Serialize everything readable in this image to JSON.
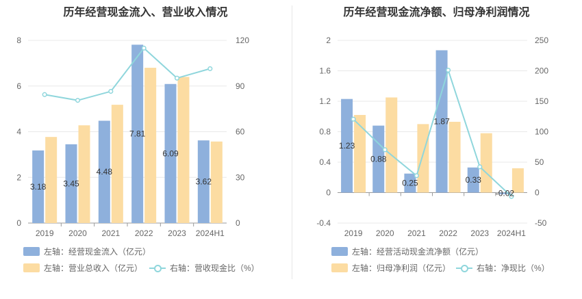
{
  "chart_data": [
    {
      "type": "bar",
      "title": "历年经营现金流入、营业收入情况",
      "categories": [
        "2019",
        "2020",
        "2021",
        "2022",
        "2023",
        "2024H1"
      ],
      "ylim_left": [
        0,
        8
      ],
      "yticks_left": [
        "0",
        "2",
        "4",
        "6",
        "8"
      ],
      "ylim_right": [
        0,
        120
      ],
      "yticks_right": [
        "0",
        "30",
        "60",
        "90",
        "120"
      ],
      "grid": true,
      "legend_position": "bottom-left",
      "series": [
        {
          "name": "左轴：经营现金流入（亿元）",
          "kind": "bar",
          "axis": "left",
          "color": "#8eb0dc",
          "values": [
            3.18,
            3.45,
            4.48,
            7.81,
            6.09,
            3.62
          ],
          "labels": [
            "3.18",
            "3.45",
            "4.48",
            "7.81",
            "6.09",
            "3.62"
          ]
        },
        {
          "name": "左轴：营业总收入（亿元）",
          "kind": "bar",
          "axis": "left",
          "color": "#fcdca2",
          "values": [
            3.77,
            4.28,
            5.18,
            6.8,
            6.4,
            3.57
          ]
        },
        {
          "name": "右轴：营收现金比（%）",
          "kind": "line",
          "axis": "right",
          "color": "#8fd6dc",
          "values": [
            84.4,
            80.6,
            86.5,
            114.9,
            95.2,
            101.4
          ]
        }
      ]
    },
    {
      "type": "bar",
      "title": "历年经营现金流净额、归母净利润情况",
      "categories": [
        "2019",
        "2020",
        "2021",
        "2022",
        "2023",
        "2024H1"
      ],
      "ylim_left": [
        -0.4,
        2
      ],
      "yticks_left": [
        "-0.4",
        "0",
        "0.4",
        "0.8",
        "1.2",
        "1.6",
        "2"
      ],
      "ylim_right": [
        -50,
        250
      ],
      "yticks_right": [
        "-50",
        "0",
        "50",
        "100",
        "150",
        "200",
        "250"
      ],
      "grid": true,
      "legend_position": "bottom-left",
      "series": [
        {
          "name": "左轴：经营活动现金流净额（亿元）",
          "kind": "bar",
          "axis": "left",
          "color": "#8eb0dc",
          "values": [
            1.23,
            0.88,
            0.25,
            1.87,
            0.33,
            -0.02
          ],
          "labels": [
            "1.23",
            "0.88",
            "0.25",
            "1.87",
            "0.33",
            "-0.02"
          ]
        },
        {
          "name": "左轴：归母净利润（亿元）",
          "kind": "bar",
          "axis": "left",
          "color": "#fcdca2",
          "values": [
            1.02,
            1.25,
            0.9,
            0.93,
            0.78,
            0.32
          ]
        },
        {
          "name": "右轴：净现比（%）",
          "kind": "line",
          "axis": "right",
          "color": "#8fd6dc",
          "values": [
            120.6,
            70.4,
            27.8,
            201.1,
            42.3,
            -6.3
          ]
        }
      ]
    }
  ]
}
